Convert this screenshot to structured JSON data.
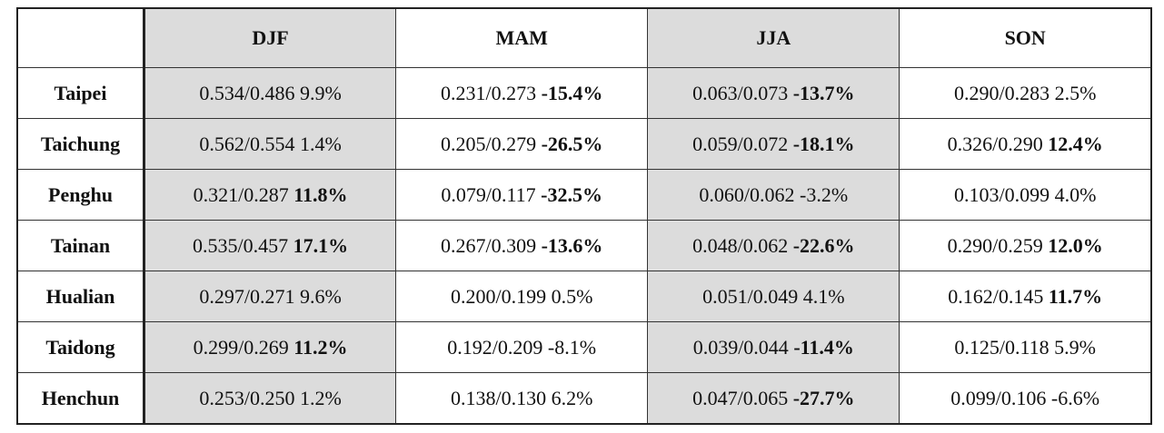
{
  "table": {
    "columns": [
      {
        "label": "DJF",
        "shaded": true
      },
      {
        "label": "MAM",
        "shaded": false
      },
      {
        "label": "JJA",
        "shaded": true
      },
      {
        "label": "SON",
        "shaded": false
      }
    ],
    "rows": [
      {
        "station": "Taipei",
        "cells": [
          {
            "ratio": "0.534/0.486",
            "change": "9.9%",
            "bold": false
          },
          {
            "ratio": "0.231/0.273",
            "change": "-15.4%",
            "bold": true
          },
          {
            "ratio": "0.063/0.073",
            "change": "-13.7%",
            "bold": true
          },
          {
            "ratio": "0.290/0.283",
            "change": "2.5%",
            "bold": false
          }
        ]
      },
      {
        "station": "Taichung",
        "cells": [
          {
            "ratio": "0.562/0.554",
            "change": "1.4%",
            "bold": false
          },
          {
            "ratio": "0.205/0.279",
            "change": "-26.5%",
            "bold": true
          },
          {
            "ratio": "0.059/0.072",
            "change": "-18.1%",
            "bold": true
          },
          {
            "ratio": "0.326/0.290",
            "change": "12.4%",
            "bold": true
          }
        ]
      },
      {
        "station": "Penghu",
        "cells": [
          {
            "ratio": "0.321/0.287",
            "change": "11.8%",
            "bold": true
          },
          {
            "ratio": "0.079/0.117",
            "change": "-32.5%",
            "bold": true
          },
          {
            "ratio": "0.060/0.062",
            "change": "-3.2%",
            "bold": false
          },
          {
            "ratio": "0.103/0.099",
            "change": "4.0%",
            "bold": false
          }
        ]
      },
      {
        "station": "Tainan",
        "cells": [
          {
            "ratio": "0.535/0.457",
            "change": "17.1%",
            "bold": true
          },
          {
            "ratio": "0.267/0.309",
            "change": "-13.6%",
            "bold": true
          },
          {
            "ratio": "0.048/0.062",
            "change": "-22.6%",
            "bold": true
          },
          {
            "ratio": "0.290/0.259",
            "change": "12.0%",
            "bold": true
          }
        ]
      },
      {
        "station": "Hualian",
        "cells": [
          {
            "ratio": "0.297/0.271",
            "change": "9.6%",
            "bold": false
          },
          {
            "ratio": "0.200/0.199",
            "change": "0.5%",
            "bold": false
          },
          {
            "ratio": "0.051/0.049",
            "change": "4.1%",
            "bold": false
          },
          {
            "ratio": "0.162/0.145",
            "change": "11.7%",
            "bold": true
          }
        ]
      },
      {
        "station": "Taidong",
        "cells": [
          {
            "ratio": "0.299/0.269",
            "change": "11.2%",
            "bold": true
          },
          {
            "ratio": "0.192/0.209",
            "change": "-8.1%",
            "bold": false
          },
          {
            "ratio": "0.039/0.044",
            "change": "-11.4%",
            "bold": true
          },
          {
            "ratio": "0.125/0.118",
            "change": "5.9%",
            "bold": false
          }
        ]
      },
      {
        "station": "Henchun",
        "cells": [
          {
            "ratio": "0.253/0.250",
            "change": "1.2%",
            "bold": false
          },
          {
            "ratio": "0.138/0.130",
            "change": "6.2%",
            "bold": false
          },
          {
            "ratio": "0.047/0.065",
            "change": "-27.7%",
            "bold": true
          },
          {
            "ratio": "0.099/0.106",
            "change": "-6.6%",
            "bold": false
          }
        ]
      }
    ]
  }
}
